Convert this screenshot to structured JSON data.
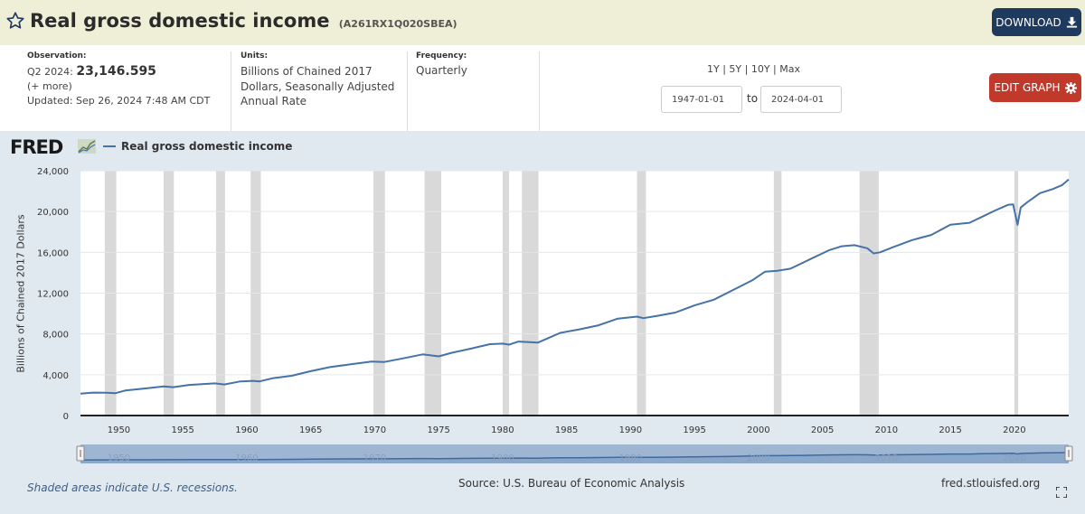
{
  "header": {
    "title": "Real gross domestic income",
    "series_id": "(A261RX1Q020SBEA)",
    "download_label": "DOWNLOAD"
  },
  "meta": {
    "observation_label": "Observation:",
    "observation_period": "Q2 2024:",
    "observation_value": "23,146.595",
    "more": "(+ more)",
    "updated_label": "Updated:",
    "updated_value": "Sep 26, 2024 7:48 AM CDT",
    "units_label": "Units:",
    "units_value": "Billions of Chained 2017 Dollars, Seasonally Adjusted Annual Rate",
    "frequency_label": "Frequency:",
    "frequency_value": "Quarterly",
    "ranges": [
      "1Y",
      "5Y",
      "10Y",
      "Max"
    ],
    "start_date": "1947-01-01",
    "to_label": "to",
    "end_date": "2024-04-01",
    "edit_label": "EDIT GRAPH"
  },
  "graph": {
    "logo": "FRED",
    "footnote": "Shaded areas indicate U.S. recessions.",
    "source": "Source: U.S. Bureau of Economic Analysis",
    "site": "fred.stlouisfed.org"
  },
  "colors": {
    "line": "#4572a7",
    "recession": "#d9d9d9",
    "header_bg": "#efefd8",
    "download_bg": "#1f3a5f",
    "edit_bg": "#c0392b"
  },
  "icons": [
    "star-icon",
    "download-icon",
    "gear-icon",
    "fullscreen-icon",
    "fred-logo-chart-icon"
  ],
  "chart_data": {
    "type": "line",
    "ylabel": "Billions of Chained 2017 Dollars",
    "ylim": [
      0,
      24000
    ],
    "y_ticks": [
      0,
      4000,
      8000,
      12000,
      16000,
      20000,
      24000
    ],
    "y_tick_labels": [
      "0",
      "4,000",
      "8,000",
      "12,000",
      "16,000",
      "20,000",
      "24,000"
    ],
    "x_range": [
      1947.0,
      2024.25
    ],
    "x_ticks": [
      1950,
      1955,
      1960,
      1965,
      1970,
      1975,
      1980,
      1985,
      1990,
      1995,
      2000,
      2005,
      2010,
      2015,
      2020
    ],
    "navigator_ticks": [
      1950,
      1960,
      1970,
      1980,
      1990,
      2000,
      2010,
      2020
    ],
    "grid": true,
    "legend": "top-left",
    "recessions": [
      [
        1948.9,
        1949.8
      ],
      [
        1953.5,
        1954.3
      ],
      [
        1957.6,
        1958.3
      ],
      [
        1960.3,
        1961.1
      ],
      [
        1969.9,
        1970.8
      ],
      [
        1973.9,
        1975.2
      ],
      [
        1980.0,
        1980.5
      ],
      [
        1981.5,
        1982.8
      ],
      [
        1990.5,
        1991.2
      ],
      [
        2001.2,
        2001.8
      ],
      [
        2007.9,
        2009.4
      ],
      [
        2020.0,
        2020.3
      ]
    ],
    "series": [
      {
        "name": "Real gross domestic income",
        "x": [
          1947.0,
          1948.0,
          1949.0,
          1949.75,
          1950.5,
          1952.0,
          1953.5,
          1954.25,
          1955.5,
          1957.5,
          1958.25,
          1959.5,
          1960.5,
          1961.0,
          1962.0,
          1963.5,
          1965.0,
          1966.5,
          1968.0,
          1969.75,
          1970.75,
          1972.0,
          1973.75,
          1975.0,
          1976.0,
          1977.5,
          1979.0,
          1980.0,
          1980.5,
          1981.25,
          1982.75,
          1983.5,
          1984.5,
          1986.0,
          1987.5,
          1989.0,
          1990.5,
          1991.0,
          1992.0,
          1993.5,
          1995.0,
          1996.5,
          1998.0,
          1999.5,
          2000.5,
          2001.5,
          2002.5,
          2004.0,
          2005.5,
          2006.5,
          2007.5,
          2008.5,
          2009.0,
          2009.5,
          2010.5,
          2012.0,
          2013.5,
          2015.0,
          2016.5,
          2017.5,
          2018.5,
          2019.5,
          2019.9,
          2020.25,
          2020.5,
          2021.0,
          2022.0,
          2023.0,
          2023.75,
          2024.25
        ],
        "y": [
          2150,
          2250,
          2230,
          2200,
          2450,
          2650,
          2850,
          2780,
          3000,
          3150,
          3050,
          3350,
          3400,
          3350,
          3650,
          3900,
          4350,
          4750,
          5000,
          5300,
          5250,
          5550,
          6000,
          5800,
          6150,
          6550,
          7000,
          7050,
          6950,
          7250,
          7150,
          7550,
          8100,
          8450,
          8850,
          9500,
          9700,
          9550,
          9750,
          10100,
          10800,
          11350,
          12300,
          13250,
          14100,
          14200,
          14400,
          15300,
          16200,
          16600,
          16700,
          16400,
          15900,
          16000,
          16500,
          17200,
          17700,
          18700,
          18900,
          19500,
          20100,
          20650,
          20700,
          18700,
          20400,
          20900,
          21800,
          22200,
          22600,
          23147
        ]
      }
    ]
  }
}
